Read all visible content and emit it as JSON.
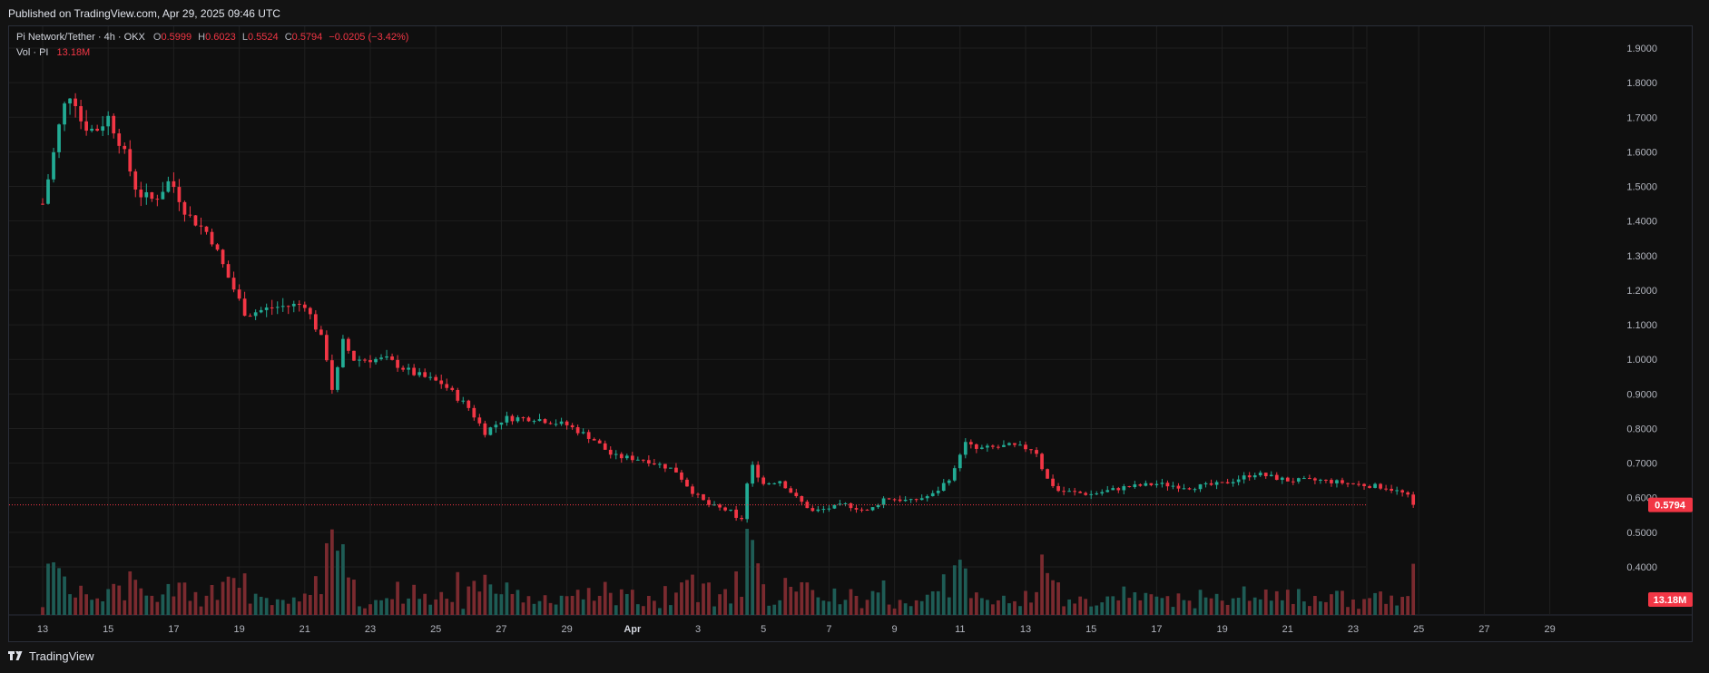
{
  "header": {
    "published": "Published on TradingView.com, Apr 29, 2025 09:46 UTC"
  },
  "legend": {
    "symbol": "Pi Network/Tether · 4h · OKX",
    "o_label": "O",
    "o": "0.5999",
    "h_label": "H",
    "h": "0.6023",
    "l_label": "L",
    "l": "0.5524",
    "c_label": "C",
    "c": "0.5794",
    "change": "−0.0205 (−3.42%)",
    "vol_label": "Vol · PI",
    "vol_value": "13.18M"
  },
  "footer": {
    "logo_text": "TradingView",
    "logo_icon": "tradingview-logo-icon"
  },
  "colors": {
    "up": "#22ab94",
    "down": "#f23645",
    "vol_up": "#1e5c55",
    "vol_down": "#7a2a2f",
    "grid": "#1f1f1f",
    "text": "#b2b5be"
  },
  "chart_data": {
    "type": "candlestick",
    "price_axis": {
      "ticks": [
        "1.9000",
        "1.8000",
        "1.7000",
        "1.6000",
        "1.5000",
        "1.4000",
        "1.3000",
        "1.2000",
        "1.1000",
        "1.0000",
        "0.9000",
        "0.8000",
        "0.7000",
        "0.6000",
        "0.5000",
        "0.4000"
      ],
      "range": [
        0.33,
        1.94
      ]
    },
    "time_axis": {
      "ticks": [
        "13",
        "15",
        "17",
        "19",
        "21",
        "23",
        "25",
        "27",
        "29",
        "Apr",
        "3",
        "5",
        "7",
        "9",
        "11",
        "13",
        "15",
        "17",
        "19",
        "21",
        "23",
        "25",
        "27",
        "29"
      ]
    },
    "last_price_label": "0.5794",
    "last_volume_label": "13.18M",
    "price_keypoints": [
      {
        "day": 0.0,
        "price": 1.45
      },
      {
        "day": 0.3,
        "price": 1.58
      },
      {
        "day": 0.6,
        "price": 1.72
      },
      {
        "day": 0.9,
        "price": 1.78
      },
      {
        "day": 1.2,
        "price": 1.68
      },
      {
        "day": 1.6,
        "price": 1.66
      },
      {
        "day": 2.0,
        "price": 1.7
      },
      {
        "day": 2.4,
        "price": 1.62
      },
      {
        "day": 2.9,
        "price": 1.48
      },
      {
        "day": 3.4,
        "price": 1.46
      },
      {
        "day": 3.9,
        "price": 1.52
      },
      {
        "day": 4.4,
        "price": 1.42
      },
      {
        "day": 5.1,
        "price": 1.36
      },
      {
        "day": 5.6,
        "price": 1.25
      },
      {
        "day": 6.2,
        "price": 1.13
      },
      {
        "day": 7.0,
        "price": 1.15
      },
      {
        "day": 8.0,
        "price": 1.16
      },
      {
        "day": 8.6,
        "price": 1.04
      },
      {
        "day": 8.9,
        "price": 0.88
      },
      {
        "day": 9.1,
        "price": 1.06
      },
      {
        "day": 9.5,
        "price": 1.0
      },
      {
        "day": 10.5,
        "price": 1.0
      },
      {
        "day": 11.3,
        "price": 0.96
      },
      {
        "day": 12.2,
        "price": 0.93
      },
      {
        "day": 13.0,
        "price": 0.86
      },
      {
        "day": 13.5,
        "price": 0.79
      },
      {
        "day": 14.1,
        "price": 0.83
      },
      {
        "day": 15.0,
        "price": 0.83
      },
      {
        "day": 16.0,
        "price": 0.81
      },
      {
        "day": 16.8,
        "price": 0.77
      },
      {
        "day": 17.4,
        "price": 0.72
      },
      {
        "day": 18.4,
        "price": 0.71
      },
      {
        "day": 19.3,
        "price": 0.68
      },
      {
        "day": 19.8,
        "price": 0.62
      },
      {
        "day": 20.3,
        "price": 0.58
      },
      {
        "day": 21.0,
        "price": 0.56
      },
      {
        "day": 21.3,
        "price": 0.52
      },
      {
        "day": 21.6,
        "price": 0.7
      },
      {
        "day": 22.0,
        "price": 0.64
      },
      {
        "day": 22.5,
        "price": 0.65
      },
      {
        "day": 23.0,
        "price": 0.6
      },
      {
        "day": 23.5,
        "price": 0.56
      },
      {
        "day": 24.5,
        "price": 0.58
      },
      {
        "day": 25.2,
        "price": 0.56
      },
      {
        "day": 25.7,
        "price": 0.6
      },
      {
        "day": 26.5,
        "price": 0.59
      },
      {
        "day": 27.2,
        "price": 0.61
      },
      {
        "day": 27.8,
        "price": 0.67
      },
      {
        "day": 28.1,
        "price": 0.76
      },
      {
        "day": 28.5,
        "price": 0.74
      },
      {
        "day": 29.5,
        "price": 0.75
      },
      {
        "day": 30.3,
        "price": 0.74
      },
      {
        "day": 30.6,
        "price": 0.66
      },
      {
        "day": 31.0,
        "price": 0.62
      },
      {
        "day": 32.0,
        "price": 0.61
      },
      {
        "day": 33.0,
        "price": 0.63
      },
      {
        "day": 34.0,
        "price": 0.64
      },
      {
        "day": 35.0,
        "price": 0.63
      },
      {
        "day": 36.0,
        "price": 0.64
      },
      {
        "day": 37.0,
        "price": 0.67
      },
      {
        "day": 38.0,
        "price": 0.65
      },
      {
        "day": 39.0,
        "price": 0.65
      },
      {
        "day": 40.0,
        "price": 0.64
      },
      {
        "day": 41.0,
        "price": 0.63
      },
      {
        "day": 41.6,
        "price": 0.61
      },
      {
        "day": 41.9,
        "price": 0.5794
      }
    ]
  }
}
